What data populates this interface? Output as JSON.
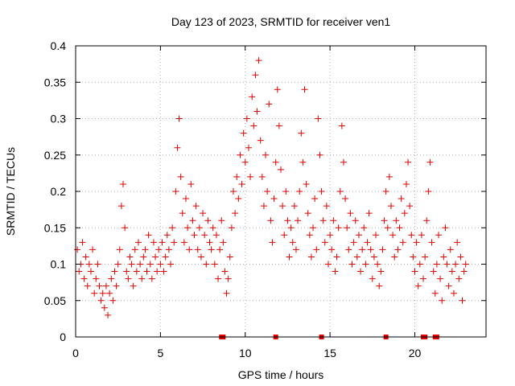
{
  "chart_data": {
    "type": "scatter",
    "title": "Day 123 of 2023, SRMTID for receiver ven1",
    "xlabel": "GPS time / hours",
    "ylabel": "SRMTID / TECUs",
    "xlim": [
      0,
      24.2
    ],
    "ylim": [
      0,
      0.4
    ],
    "x_ticks": [
      0,
      5,
      10,
      15,
      20
    ],
    "y_ticks": [
      0,
      0.05,
      0.1,
      0.15,
      0.2,
      0.25,
      0.3,
      0.35,
      0.4
    ],
    "x_tick_labels": [
      "0",
      "5",
      "10",
      "15",
      "20"
    ],
    "y_tick_labels": [
      "0",
      "0.05",
      "0.1",
      "0.15",
      "0.2",
      "0.25",
      "0.3",
      "0.35",
      "0.4"
    ],
    "grid": true,
    "marker": "+",
    "color": "#e00000",
    "series": [
      {
        "name": "SRMTID",
        "points": [
          [
            0.1,
            0.12
          ],
          [
            0.2,
            0.09
          ],
          [
            0.3,
            0.1
          ],
          [
            0.4,
            0.13
          ],
          [
            0.5,
            0.08
          ],
          [
            0.6,
            0.11
          ],
          [
            0.7,
            0.07
          ],
          [
            0.8,
            0.1
          ],
          [
            0.9,
            0.09
          ],
          [
            1.0,
            0.12
          ],
          [
            1.1,
            0.06
          ],
          [
            1.2,
            0.08
          ],
          [
            1.3,
            0.1
          ],
          [
            1.4,
            0.07
          ],
          [
            1.5,
            0.05
          ],
          [
            1.6,
            0.06
          ],
          [
            1.7,
            0.04
          ],
          [
            1.8,
            0.07
          ],
          [
            1.9,
            0.03
          ],
          [
            2.0,
            0.06
          ],
          [
            2.1,
            0.08
          ],
          [
            2.2,
            0.05
          ],
          [
            2.3,
            0.09
          ],
          [
            2.4,
            0.07
          ],
          [
            2.5,
            0.1
          ],
          [
            2.6,
            0.12
          ],
          [
            2.7,
            0.18
          ],
          [
            2.8,
            0.21
          ],
          [
            2.9,
            0.15
          ],
          [
            3.0,
            0.09
          ],
          [
            3.1,
            0.08
          ],
          [
            3.2,
            0.11
          ],
          [
            3.3,
            0.1
          ],
          [
            3.4,
            0.07
          ],
          [
            3.5,
            0.12
          ],
          [
            3.6,
            0.09
          ],
          [
            3.7,
            0.13
          ],
          [
            3.8,
            0.1
          ],
          [
            3.9,
            0.08
          ],
          [
            4.0,
            0.11
          ],
          [
            4.1,
            0.12
          ],
          [
            4.2,
            0.09
          ],
          [
            4.3,
            0.14
          ],
          [
            4.4,
            0.1
          ],
          [
            4.5,
            0.08
          ],
          [
            4.6,
            0.13
          ],
          [
            4.7,
            0.11
          ],
          [
            4.8,
            0.09
          ],
          [
            4.9,
            0.12
          ],
          [
            5.0,
            0.1
          ],
          [
            5.1,
            0.13
          ],
          [
            5.2,
            0.09
          ],
          [
            5.3,
            0.11
          ],
          [
            5.4,
            0.14
          ],
          [
            5.5,
            0.12
          ],
          [
            5.6,
            0.1
          ],
          [
            5.7,
            0.15
          ],
          [
            5.8,
            0.13
          ],
          [
            5.9,
            0.2
          ],
          [
            6.0,
            0.26
          ],
          [
            6.1,
            0.3
          ],
          [
            6.2,
            0.22
          ],
          [
            6.3,
            0.17
          ],
          [
            6.4,
            0.13
          ],
          [
            6.5,
            0.19
          ],
          [
            6.6,
            0.15
          ],
          [
            6.7,
            0.12
          ],
          [
            6.8,
            0.21
          ],
          [
            6.9,
            0.16
          ],
          [
            7.0,
            0.14
          ],
          [
            7.1,
            0.18
          ],
          [
            7.2,
            0.12
          ],
          [
            7.3,
            0.15
          ],
          [
            7.4,
            0.11
          ],
          [
            7.5,
            0.17
          ],
          [
            7.6,
            0.14
          ],
          [
            7.7,
            0.1
          ],
          [
            7.8,
            0.16
          ],
          [
            7.9,
            0.13
          ],
          [
            8.0,
            0.12
          ],
          [
            8.1,
            0.15
          ],
          [
            8.2,
            0.1
          ],
          [
            8.3,
            0.14
          ],
          [
            8.4,
            0.08
          ],
          [
            8.5,
            0.12
          ],
          [
            8.6,
            0.16
          ],
          [
            8.7,
            0.13
          ],
          [
            8.8,
            0.09
          ],
          [
            8.9,
            0.06
          ],
          [
            9.0,
            0.08
          ],
          [
            9.1,
            0.11
          ],
          [
            9.2,
            0.15
          ],
          [
            9.3,
            0.2
          ],
          [
            9.4,
            0.17
          ],
          [
            9.5,
            0.22
          ],
          [
            9.6,
            0.19
          ],
          [
            9.7,
            0.25
          ],
          [
            9.8,
            0.21
          ],
          [
            9.9,
            0.28
          ],
          [
            10.0,
            0.24
          ],
          [
            10.1,
            0.3
          ],
          [
            10.2,
            0.26
          ],
          [
            10.3,
            0.22
          ],
          [
            10.4,
            0.33
          ],
          [
            10.5,
            0.29
          ],
          [
            10.6,
            0.36
          ],
          [
            10.7,
            0.31
          ],
          [
            10.8,
            0.38
          ],
          [
            10.9,
            0.27
          ],
          [
            11.0,
            0.22
          ],
          [
            11.1,
            0.18
          ],
          [
            11.2,
            0.25
          ],
          [
            11.3,
            0.2
          ],
          [
            11.4,
            0.32
          ],
          [
            11.5,
            0.16
          ],
          [
            11.6,
            0.13
          ],
          [
            11.7,
            0.19
          ],
          [
            11.8,
            0.24
          ],
          [
            11.9,
            0.34
          ],
          [
            12.0,
            0.29
          ],
          [
            12.1,
            0.23
          ],
          [
            12.2,
            0.18
          ],
          [
            12.3,
            0.14
          ],
          [
            12.4,
            0.2
          ],
          [
            12.5,
            0.16
          ],
          [
            12.6,
            0.11
          ],
          [
            12.7,
            0.15
          ],
          [
            12.8,
            0.13
          ],
          [
            12.9,
            0.18
          ],
          [
            13.0,
            0.12
          ],
          [
            13.1,
            0.16
          ],
          [
            13.2,
            0.2
          ],
          [
            13.3,
            0.28
          ],
          [
            13.4,
            0.24
          ],
          [
            13.5,
            0.34
          ],
          [
            13.6,
            0.21
          ],
          [
            13.7,
            0.17
          ],
          [
            13.8,
            0.14
          ],
          [
            13.9,
            0.11
          ],
          [
            14.0,
            0.15
          ],
          [
            14.1,
            0.19
          ],
          [
            14.2,
            0.12
          ],
          [
            14.3,
            0.3
          ],
          [
            14.4,
            0.25
          ],
          [
            14.5,
            0.2
          ],
          [
            14.6,
            0.16
          ],
          [
            14.7,
            0.13
          ],
          [
            14.8,
            0.18
          ],
          [
            14.9,
            0.1
          ],
          [
            15.0,
            0.14
          ],
          [
            15.1,
            0.12
          ],
          [
            15.2,
            0.16
          ],
          [
            15.3,
            0.09
          ],
          [
            15.4,
            0.11
          ],
          [
            15.5,
            0.15
          ],
          [
            15.6,
            0.2
          ],
          [
            15.7,
            0.29
          ],
          [
            15.8,
            0.24
          ],
          [
            15.9,
            0.19
          ],
          [
            16.0,
            0.15
          ],
          [
            16.1,
            0.12
          ],
          [
            16.2,
            0.17
          ],
          [
            16.3,
            0.1
          ],
          [
            16.4,
            0.13
          ],
          [
            16.5,
            0.16
          ],
          [
            16.6,
            0.11
          ],
          [
            16.7,
            0.14
          ],
          [
            16.8,
            0.09
          ],
          [
            16.9,
            0.12
          ],
          [
            17.0,
            0.15
          ],
          [
            17.1,
            0.1
          ],
          [
            17.2,
            0.13
          ],
          [
            17.3,
            0.17
          ],
          [
            17.4,
            0.12
          ],
          [
            17.5,
            0.08
          ],
          [
            17.6,
            0.11
          ],
          [
            17.7,
            0.14
          ],
          [
            17.8,
            0.1
          ],
          [
            17.9,
            0.07
          ],
          [
            18.0,
            0.09
          ],
          [
            18.1,
            0.12
          ],
          [
            18.2,
            0.16
          ],
          [
            18.3,
            0.2
          ],
          [
            18.4,
            0.15
          ],
          [
            18.5,
            0.22
          ],
          [
            18.6,
            0.18
          ],
          [
            18.7,
            0.14
          ],
          [
            18.8,
            0.11
          ],
          [
            18.9,
            0.16
          ],
          [
            19.0,
            0.12
          ],
          [
            19.1,
            0.15
          ],
          [
            19.2,
            0.19
          ],
          [
            19.3,
            0.13
          ],
          [
            19.4,
            0.17
          ],
          [
            19.5,
            0.21
          ],
          [
            19.6,
            0.24
          ],
          [
            19.7,
            0.18
          ],
          [
            19.8,
            0.14
          ],
          [
            19.9,
            0.11
          ],
          [
            20.0,
            0.09
          ],
          [
            20.1,
            0.13
          ],
          [
            20.2,
            0.07
          ],
          [
            20.3,
            0.1
          ],
          [
            20.4,
            0.14
          ],
          [
            20.5,
            0.08
          ],
          [
            20.6,
            0.11
          ],
          [
            20.7,
            0.16
          ],
          [
            20.8,
            0.2
          ],
          [
            20.9,
            0.24
          ],
          [
            21.0,
            0.13
          ],
          [
            21.1,
            0.09
          ],
          [
            21.2,
            0.06
          ],
          [
            21.3,
            0.1
          ],
          [
            21.4,
            0.14
          ],
          [
            21.5,
            0.08
          ],
          [
            21.6,
            0.05
          ],
          [
            21.7,
            0.11
          ],
          [
            21.8,
            0.15
          ],
          [
            21.9,
            0.1
          ],
          [
            22.0,
            0.07
          ],
          [
            22.1,
            0.12
          ],
          [
            22.2,
            0.09
          ],
          [
            22.3,
            0.06
          ],
          [
            22.4,
            0.1
          ],
          [
            22.5,
            0.13
          ],
          [
            22.6,
            0.08
          ],
          [
            22.7,
            0.11
          ],
          [
            22.8,
            0.05
          ],
          [
            22.9,
            0.09
          ],
          [
            23.0,
            0.1
          ]
        ]
      }
    ],
    "zero_markers_x": [
      8.6,
      8.7,
      11.8,
      14.5,
      18.3,
      20.5,
      20.6,
      21.2,
      21.3
    ]
  }
}
